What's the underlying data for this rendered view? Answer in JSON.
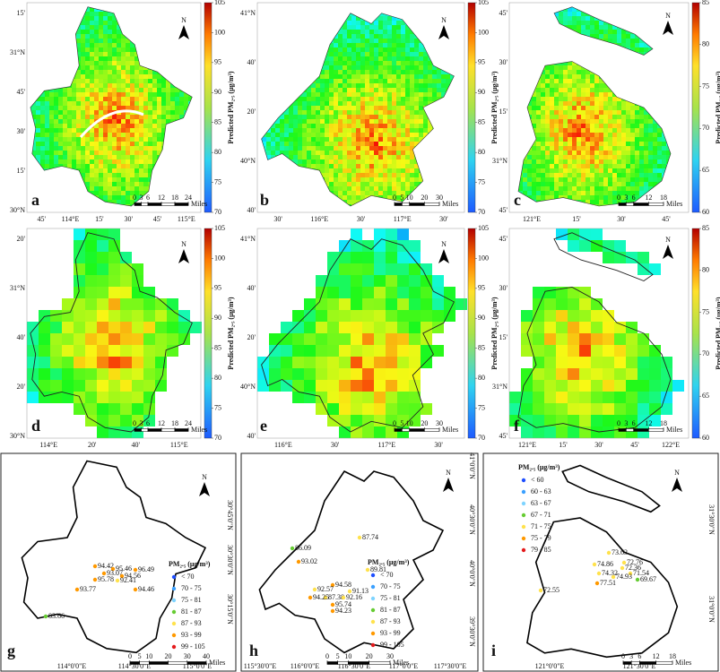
{
  "panels": [
    {
      "letter": "a",
      "north": "N",
      "lat_labels": [
        "15'",
        "31°N",
        "45'",
        "30'",
        "15'",
        "30°N"
      ],
      "lon_labels": [
        "45'",
        "114°E",
        "15'",
        "30'",
        "45'",
        "115°E"
      ],
      "colorbar": {
        "lim": [
          70,
          105
        ],
        "ticks": [
          70,
          75,
          80,
          85,
          90,
          95,
          100,
          105
        ],
        "label": "Predicted PM₂.₅ (μg/m³)"
      },
      "scalebar": {
        "ticks": [
          0,
          3,
          6,
          12,
          18,
          24
        ],
        "unit": "Miles"
      }
    },
    {
      "letter": "b",
      "north": "N",
      "lat_labels": [
        "41°N",
        "40'",
        "20'",
        "40°N",
        "40'"
      ],
      "lon_labels": [
        "30'",
        "116°E",
        "30'",
        "117°E",
        "30'"
      ],
      "colorbar": {
        "lim": [
          70,
          105
        ],
        "ticks": [
          70,
          75,
          80,
          85,
          90,
          95,
          100,
          105
        ],
        "label": "Predicted PM₂.₅ (μg/m³)"
      },
      "scalebar": {
        "ticks": [
          0,
          5,
          10,
          20,
          30
        ],
        "unit": "Miles"
      }
    },
    {
      "letter": "c",
      "north": "N",
      "lat_labels": [
        "45'",
        "30'",
        "15'",
        "31°N",
        "45'"
      ],
      "lon_labels": [
        "121°E",
        "15'",
        "30'",
        "45'"
      ],
      "colorbar": {
        "lim": [
          60,
          85
        ],
        "ticks": [
          60,
          65,
          70,
          75,
          80,
          85
        ],
        "label": "Predicted PM₂.₅ (μg/m³)"
      },
      "scalebar": {
        "ticks": [
          0,
          3,
          6,
          12,
          18
        ],
        "unit": "Miles"
      }
    },
    {
      "letter": "d",
      "north": "N",
      "lat_labels": [
        "20'",
        "31°N",
        "40'",
        "20'",
        "30°N"
      ],
      "lon_labels": [
        "114°E",
        "20'",
        "40'",
        "115°E"
      ],
      "colorbar": {
        "lim": [
          70,
          105
        ],
        "ticks": [
          70,
          75,
          80,
          85,
          90,
          95,
          100,
          105
        ],
        "label": "Predicted PM₂.₅ (μg/m³)"
      },
      "scalebar": {
        "ticks": [
          0,
          3,
          6,
          12,
          18,
          24
        ],
        "unit": "Miles"
      }
    },
    {
      "letter": "e",
      "north": "N",
      "lat_labels": [
        "41°N",
        "40'",
        "20'",
        "40°N",
        "40'"
      ],
      "lon_labels": [
        "116°E",
        "30'",
        "117°E",
        "30'"
      ],
      "colorbar": {
        "lim": [
          70,
          105
        ],
        "ticks": [
          70,
          75,
          80,
          85,
          90,
          95,
          100,
          105
        ],
        "label": "Predicted PM₂.₅ (μg/m³)"
      },
      "scalebar": {
        "ticks": [
          0,
          5,
          10,
          20,
          30
        ],
        "unit": "Miles"
      }
    },
    {
      "letter": "f",
      "north": "N",
      "lat_labels": [
        "45'",
        "30'",
        "15'",
        "31°N",
        "45'"
      ],
      "lon_labels": [
        "121°E",
        "15'",
        "30'",
        "45'",
        "122°E"
      ],
      "colorbar": {
        "lim": [
          60,
          85
        ],
        "ticks": [
          60,
          65,
          70,
          75,
          80,
          85
        ],
        "label": "Predicted PM₂.₅ (μg/m³)"
      },
      "scalebar": {
        "ticks": [
          0,
          3,
          6,
          12,
          18
        ],
        "unit": "Miles"
      }
    },
    {
      "letter": "g",
      "north": "N",
      "lat_labels": [
        "30°45'0\"N",
        "30°30'0\"N",
        "30°15'0\"N"
      ],
      "lon_labels": [
        "114°0'0\"E",
        "114°30'0\"E",
        "115°0'0\"E"
      ],
      "legend": {
        "title": "PM₂.₅ (μg/m³)",
        "items": [
          {
            "label": "< 70",
            "color": "#1f4fff"
          },
          {
            "label": "70 - 75",
            "color": "#3aa0ff"
          },
          {
            "label": "75 - 81",
            "color": "#7fd4ff"
          },
          {
            "label": "81 - 87",
            "color": "#66cc33"
          },
          {
            "label": "87 - 93",
            "color": "#ffe24d"
          },
          {
            "label": "93 - 99",
            "color": "#ff9900"
          },
          {
            "label": "99 - 105",
            "color": "#e41a1c"
          }
        ]
      },
      "stations": [
        {
          "value": 94.42,
          "color": "#ff9900"
        },
        {
          "value": 95.46,
          "color": "#ff9900"
        },
        {
          "value": 96.49,
          "color": "#ff9900"
        },
        {
          "value": 93.07,
          "color": "#ff9900"
        },
        {
          "value": 94.56,
          "color": "#ff9900"
        },
        {
          "value": 95.78,
          "color": "#ff9900"
        },
        {
          "value": 92.41,
          "color": "#ffe24d"
        },
        {
          "value": 93.77,
          "color": "#ff9900"
        },
        {
          "value": 94.46,
          "color": "#ff9900"
        },
        {
          "value": 83.66,
          "color": "#66cc33"
        }
      ],
      "scalebar": {
        "ticks": [
          0,
          5,
          10,
          20,
          30,
          40
        ],
        "unit": "Miles"
      }
    },
    {
      "letter": "h",
      "north": "N",
      "lat_labels": [
        "41°0'0\"N",
        "40°30'0\"N",
        "40°0'0\"N",
        "39°30'0\"N"
      ],
      "lon_labels": [
        "115°30'0\"E",
        "116°0'0\"E",
        "116°30'0\"E",
        "117°0'0\"E",
        "117°30'0\"E"
      ],
      "legend": {
        "title": "PM₂.₅ (μg/m³)",
        "items": [
          {
            "label": "< 70",
            "color": "#1f4fff"
          },
          {
            "label": "70 - 75",
            "color": "#3aa0ff"
          },
          {
            "label": "75 - 81",
            "color": "#7fd4ff"
          },
          {
            "label": "81 - 87",
            "color": "#66cc33"
          },
          {
            "label": "87 - 93",
            "color": "#ffe24d"
          },
          {
            "label": "93 - 99",
            "color": "#ff9900"
          },
          {
            "label": "99 - 105",
            "color": "#e41a1c"
          }
        ]
      },
      "stations": [
        {
          "value": 87.74,
          "color": "#ffe24d"
        },
        {
          "value": 86.09,
          "color": "#66cc33"
        },
        {
          "value": 93.02,
          "color": "#ff9900"
        },
        {
          "value": 89.81,
          "color": "#ffe24d"
        },
        {
          "value": 94.58,
          "color": "#ff9900"
        },
        {
          "value": 92.57,
          "color": "#ffe24d"
        },
        {
          "value": 91.13,
          "color": "#ffe24d"
        },
        {
          "value": 87.38,
          "color": "#ffe24d"
        },
        {
          "value": 92.16,
          "color": "#ffe24d"
        },
        {
          "value": 94.25,
          "color": "#ff9900"
        },
        {
          "value": 95.74,
          "color": "#ff9900"
        },
        {
          "value": 94.23,
          "color": "#ff9900"
        }
      ],
      "scalebar": {
        "ticks": [
          0,
          5,
          10,
          20,
          30
        ],
        "unit": "Miles"
      }
    },
    {
      "letter": "i",
      "north": "N",
      "lat_labels": [
        "31°30'0\"N",
        "31°0'0\"N"
      ],
      "lon_labels": [
        "121°0'0\"E",
        "121°30'0\"E"
      ],
      "legend": {
        "title": "PM₂.₅ (μg/m³)",
        "items": [
          {
            "label": "< 60",
            "color": "#1f4fff"
          },
          {
            "label": "60 - 63",
            "color": "#3aa0ff"
          },
          {
            "label": "63 - 67",
            "color": "#7fd4ff"
          },
          {
            "label": "67 - 71",
            "color": "#66cc33"
          },
          {
            "label": "71 - 75",
            "color": "#ffe24d"
          },
          {
            "label": "75 - 79",
            "color": "#ff9900"
          },
          {
            "label": "79 - 85",
            "color": "#e41a1c"
          }
        ]
      },
      "stations": [
        {
          "value": 73.63,
          "color": "#ffe24d"
        },
        {
          "value": 72.76,
          "color": "#ffe24d"
        },
        {
          "value": 74.86,
          "color": "#ffe24d"
        },
        {
          "value": 72.36,
          "color": "#ffe24d"
        },
        {
          "value": 74.32,
          "color": "#ffe24d"
        },
        {
          "value": 71.54,
          "color": "#ffe24d"
        },
        {
          "value": 74.93,
          "color": "#ffe24d"
        },
        {
          "value": 69.67,
          "color": "#66cc33"
        },
        {
          "value": 77.51,
          "color": "#ff9900"
        },
        {
          "value": 72.55,
          "color": "#ffe24d"
        }
      ],
      "scalebar": {
        "ticks": [
          0,
          3,
          6,
          12,
          18
        ],
        "unit": "Miles"
      }
    }
  ]
}
